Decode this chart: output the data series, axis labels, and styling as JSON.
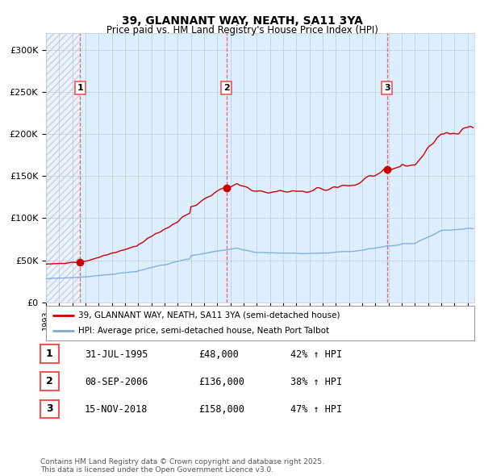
{
  "title": "39, GLANNANT WAY, NEATH, SA11 3YA",
  "subtitle": "Price paid vs. HM Land Registry's House Price Index (HPI)",
  "xlim_start": 1993.0,
  "xlim_end": 2025.5,
  "ylim": [
    0,
    320000
  ],
  "yticks": [
    0,
    50000,
    100000,
    150000,
    200000,
    250000,
    300000
  ],
  "ytick_labels": [
    "£0",
    "£50K",
    "£100K",
    "£150K",
    "£200K",
    "£250K",
    "£300K"
  ],
  "price_paid_color": "#cc0000",
  "hpi_color": "#7aaadd",
  "sale_marker_color": "#cc0000",
  "vline_color": "#ee5555",
  "bg_color": "#ddeeff",
  "hatch_bg": "#c8daf0",
  "grid_color": "#bbccdd",
  "sales": [
    {
      "date_year": 1995.58,
      "price": 48000,
      "label": "1"
    },
    {
      "date_year": 2006.69,
      "price": 136000,
      "label": "2"
    },
    {
      "date_year": 2018.88,
      "price": 158000,
      "label": "3"
    }
  ],
  "sale_details": [
    {
      "num": "1",
      "date": "31-JUL-1995",
      "price": "£48,000",
      "change": "42% ↑ HPI"
    },
    {
      "num": "2",
      "date": "08-SEP-2006",
      "price": "£136,000",
      "change": "38% ↑ HPI"
    },
    {
      "num": "3",
      "date": "15-NOV-2018",
      "price": "£158,000",
      "change": "47% ↑ HPI"
    }
  ],
  "legend_line1": "39, GLANNANT WAY, NEATH, SA11 3YA (semi-detached house)",
  "legend_line2": "HPI: Average price, semi-detached house, Neath Port Talbot",
  "footer": "Contains HM Land Registry data © Crown copyright and database right 2025.\nThis data is licensed under the Open Government Licence v3.0.",
  "hpi_premium": 1.42,
  "hpi_base_1993": 28000
}
